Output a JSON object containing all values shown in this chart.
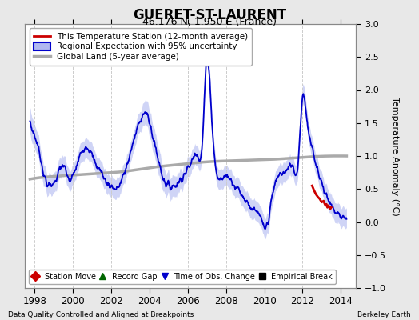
{
  "title": "GUERET-ST-LAURENT",
  "subtitle": "46.176 N, 1.950 E (France)",
  "ylabel": "Temperature Anomaly (°C)",
  "footer_left": "Data Quality Controlled and Aligned at Breakpoints",
  "footer_right": "Berkeley Earth",
  "xlim": [
    1997.5,
    2014.8
  ],
  "ylim": [
    -1.0,
    3.0
  ],
  "yticks": [
    -1.0,
    -0.5,
    0.0,
    0.5,
    1.0,
    1.5,
    2.0,
    2.5,
    3.0
  ],
  "xticks": [
    1998,
    2000,
    2002,
    2004,
    2006,
    2008,
    2010,
    2012,
    2014
  ],
  "bg_color": "#e8e8e8",
  "plot_bg_color": "#ffffff",
  "grid_color": "#cccccc",
  "regional_color": "#0000cc",
  "regional_fill_color": "#b0b8f0",
  "station_color": "#cc0000",
  "global_color": "#aaaaaa",
  "legend1_items": [
    {
      "label": "This Temperature Station (12-month average)",
      "color": "#cc0000"
    },
    {
      "label": "Regional Expectation with 95% uncertainty",
      "color": "#0000cc",
      "fill": "#b0b8f0"
    },
    {
      "label": "Global Land (5-year average)",
      "color": "#aaaaaa"
    }
  ],
  "legend2_items": [
    {
      "label": "Station Move",
      "color": "#cc0000",
      "marker": "D"
    },
    {
      "label": "Record Gap",
      "color": "#006600",
      "marker": "^"
    },
    {
      "label": "Time of Obs. Change",
      "color": "#0000cc",
      "marker": "v"
    },
    {
      "label": "Empirical Break",
      "color": "#000000",
      "marker": "s"
    }
  ],
  "regional_x": [
    1997.75,
    1998.0,
    1998.25,
    1998.5,
    1998.75,
    1999.0,
    1999.25,
    1999.5,
    1999.75,
    2000.0,
    2000.25,
    2000.5,
    2000.75,
    2001.0,
    2001.25,
    2001.5,
    2001.75,
    2002.0,
    2002.25,
    2002.5,
    2002.75,
    2003.0,
    2003.25,
    2003.5,
    2003.75,
    2004.0,
    2004.25,
    2004.5,
    2004.75,
    2005.0,
    2005.25,
    2005.5,
    2005.75,
    2006.0,
    2006.25,
    2006.5,
    2006.75,
    2007.0,
    2007.25,
    2007.5,
    2007.75,
    2008.0,
    2008.25,
    2008.5,
    2008.75,
    2009.0,
    2009.25,
    2009.5,
    2009.75,
    2010.0,
    2010.25,
    2010.5,
    2010.75,
    2011.0,
    2011.25,
    2011.5,
    2011.75,
    2012.0,
    2012.25,
    2012.5,
    2012.75,
    2013.0,
    2013.25,
    2013.5,
    2013.75,
    2014.0,
    2014.25
  ],
  "regional_y": [
    1.5,
    1.3,
    1.05,
    0.7,
    0.55,
    0.6,
    0.75,
    0.85,
    0.65,
    0.7,
    0.9,
    1.1,
    1.15,
    1.0,
    0.85,
    0.75,
    0.6,
    0.55,
    0.5,
    0.6,
    0.8,
    1.05,
    1.3,
    1.55,
    1.65,
    1.5,
    1.2,
    0.9,
    0.65,
    0.55,
    0.55,
    0.6,
    0.7,
    0.8,
    0.95,
    1.05,
    1.15,
    2.5,
    1.6,
    0.75,
    0.65,
    0.7,
    0.65,
    0.55,
    0.45,
    0.35,
    0.25,
    0.15,
    0.1,
    -0.1,
    0.1,
    0.5,
    0.7,
    0.75,
    0.8,
    0.85,
    0.85,
    1.9,
    1.5,
    1.1,
    0.85,
    0.6,
    0.4,
    0.25,
    0.15,
    0.1,
    0.05
  ],
  "unc_y": [
    0.2,
    0.18,
    0.17,
    0.16,
    0.15,
    0.15,
    0.15,
    0.15,
    0.15,
    0.15,
    0.15,
    0.15,
    0.15,
    0.15,
    0.15,
    0.15,
    0.15,
    0.15,
    0.15,
    0.15,
    0.15,
    0.15,
    0.15,
    0.15,
    0.18,
    0.2,
    0.2,
    0.2,
    0.18,
    0.17,
    0.16,
    0.15,
    0.15,
    0.15,
    0.15,
    0.15,
    0.15,
    0.15,
    0.15,
    0.15,
    0.15,
    0.15,
    0.15,
    0.15,
    0.15,
    0.15,
    0.15,
    0.15,
    0.15,
    0.15,
    0.15,
    0.15,
    0.15,
    0.15,
    0.15,
    0.15,
    0.15,
    0.15,
    0.15,
    0.15,
    0.15,
    0.15,
    0.15,
    0.15,
    0.15,
    0.15,
    0.15
  ],
  "global_x": [
    1997.75,
    1998.5,
    1999.5,
    2000.5,
    2001.5,
    2002.5,
    2003.5,
    2004.5,
    2005.5,
    2006.5,
    2007.5,
    2008.5,
    2009.5,
    2010.5,
    2011.5,
    2012.5,
    2013.5,
    2014.25
  ],
  "global_y": [
    0.65,
    0.68,
    0.7,
    0.72,
    0.74,
    0.76,
    0.8,
    0.84,
    0.87,
    0.9,
    0.92,
    0.93,
    0.94,
    0.95,
    0.97,
    0.99,
    1.0,
    1.0
  ],
  "station_x": [
    2012.5,
    2012.6,
    2012.7,
    2012.8,
    2012.9,
    2013.0,
    2013.1,
    2013.15,
    2013.2,
    2013.25,
    2013.3,
    2013.35,
    2013.4,
    2013.45,
    2013.5
  ],
  "station_y": [
    0.55,
    0.48,
    0.42,
    0.38,
    0.35,
    0.3,
    0.32,
    0.28,
    0.25,
    0.27,
    0.22,
    0.25,
    0.23,
    0.2,
    0.22
  ]
}
